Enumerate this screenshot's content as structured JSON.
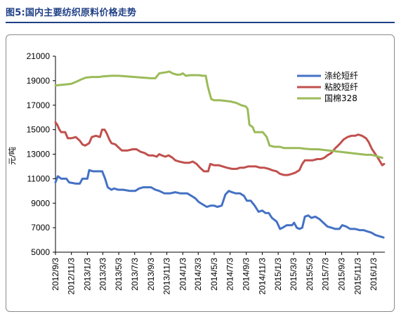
{
  "figure": {
    "title": "图5:国内主要纺织原料价格走势"
  },
  "colors": {
    "accent": "#1f3f86",
    "polyester": "#4472c4",
    "viscose": "#c0504d",
    "cotton": "#9bbb59"
  },
  "chart_data": {
    "type": "line",
    "ylabel": "元/吨",
    "ylim": [
      5000,
      21000
    ],
    "yticks": [
      5000,
      7000,
      9000,
      11000,
      13000,
      15000,
      17000,
      19000,
      21000
    ],
    "xlim": [
      "2012-09-03",
      "2016-02-15"
    ],
    "xticks": [
      "2012/9/3",
      "2012/11/3",
      "2013/1/3",
      "2013/3/3",
      "2013/5/3",
      "2013/7/3",
      "2013/9/3",
      "2013/11/3",
      "2014/1/3",
      "2014/3/3",
      "2014/5/3",
      "2014/7/3",
      "2014/9/3",
      "2014/11/3",
      "2015/1/3",
      "2015/3/3",
      "2015/5/3",
      "2015/7/3",
      "2015/9/3",
      "2015/11/3",
      "2016/1/3"
    ],
    "legend_position": "top-right",
    "grid": false,
    "series": [
      {
        "name": "涤纶短纤",
        "color": "#4472c4",
        "points": [
          [
            "2012-09-03",
            10700
          ],
          [
            "2012-09-12",
            11200
          ],
          [
            "2012-09-25",
            11000
          ],
          [
            "2012-10-15",
            11000
          ],
          [
            "2012-10-25",
            10700
          ],
          [
            "2012-11-20",
            10600
          ],
          [
            "2012-12-05",
            10600
          ],
          [
            "2012-12-15",
            11000
          ],
          [
            "2013-01-03",
            11000
          ],
          [
            "2013-01-10",
            11700
          ],
          [
            "2013-01-25",
            11600
          ],
          [
            "2013-02-20",
            11600
          ],
          [
            "2013-03-01",
            11600
          ],
          [
            "2013-03-12",
            11000
          ],
          [
            "2013-03-22",
            10300
          ],
          [
            "2013-04-05",
            10100
          ],
          [
            "2013-04-15",
            10200
          ],
          [
            "2013-05-01",
            10100
          ],
          [
            "2013-05-20",
            10100
          ],
          [
            "2013-06-15",
            10000
          ],
          [
            "2013-07-05",
            10000
          ],
          [
            "2013-07-20",
            10200
          ],
          [
            "2013-08-05",
            10300
          ],
          [
            "2013-09-03",
            10300
          ],
          [
            "2013-09-20",
            10100
          ],
          [
            "2013-10-05",
            10000
          ],
          [
            "2013-10-25",
            9800
          ],
          [
            "2013-11-15",
            9800
          ],
          [
            "2013-12-05",
            9900
          ],
          [
            "2013-12-25",
            9800
          ],
          [
            "2014-01-20",
            9800
          ],
          [
            "2014-02-05",
            9600
          ],
          [
            "2014-02-20",
            9400
          ],
          [
            "2014-03-05",
            9100
          ],
          [
            "2014-03-20",
            8900
          ],
          [
            "2014-04-05",
            8700
          ],
          [
            "2014-04-20",
            8800
          ],
          [
            "2014-05-03",
            8800
          ],
          [
            "2014-05-15",
            8700
          ],
          [
            "2014-06-01",
            8800
          ],
          [
            "2014-06-15",
            9700
          ],
          [
            "2014-06-28",
            10000
          ],
          [
            "2014-07-10",
            9900
          ],
          [
            "2014-07-25",
            9800
          ],
          [
            "2014-08-10",
            9800
          ],
          [
            "2014-08-25",
            9600
          ],
          [
            "2014-09-05",
            9200
          ],
          [
            "2014-09-20",
            9200
          ],
          [
            "2014-10-05",
            8800
          ],
          [
            "2014-10-20",
            8300
          ],
          [
            "2014-11-03",
            8400
          ],
          [
            "2014-11-15",
            8200
          ],
          [
            "2014-11-28",
            8200
          ],
          [
            "2014-12-10",
            7800
          ],
          [
            "2014-12-28",
            7500
          ],
          [
            "2015-01-10",
            6900
          ],
          [
            "2015-01-20",
            7000
          ],
          [
            "2015-02-05",
            7200
          ],
          [
            "2015-02-25",
            7200
          ],
          [
            "2015-03-05",
            7400
          ],
          [
            "2015-03-15",
            7000
          ],
          [
            "2015-03-25",
            6900
          ],
          [
            "2015-04-05",
            7000
          ],
          [
            "2015-04-15",
            7900
          ],
          [
            "2015-04-28",
            8000
          ],
          [
            "2015-05-10",
            7800
          ],
          [
            "2015-05-25",
            7900
          ],
          [
            "2015-06-10",
            7700
          ],
          [
            "2015-06-25",
            7400
          ],
          [
            "2015-07-10",
            7100
          ],
          [
            "2015-07-25",
            7000
          ],
          [
            "2015-08-10",
            6900
          ],
          [
            "2015-08-25",
            6900
          ],
          [
            "2015-09-05",
            7200
          ],
          [
            "2015-09-20",
            7100
          ],
          [
            "2015-10-05",
            6900
          ],
          [
            "2015-10-25",
            6900
          ],
          [
            "2015-11-10",
            6800
          ],
          [
            "2015-11-25",
            6800
          ],
          [
            "2015-12-10",
            6700
          ],
          [
            "2015-12-25",
            6600
          ],
          [
            "2016-01-10",
            6400
          ],
          [
            "2016-01-25",
            6300
          ],
          [
            "2016-02-10",
            6200
          ]
        ]
      },
      {
        "name": "粘胶短纤",
        "color": "#c0504d",
        "points": [
          [
            "2012-09-03",
            15600
          ],
          [
            "2012-09-10",
            15400
          ],
          [
            "2012-09-18",
            15000
          ],
          [
            "2012-09-25",
            14800
          ],
          [
            "2012-10-10",
            14800
          ],
          [
            "2012-10-20",
            14300
          ],
          [
            "2012-11-03",
            14300
          ],
          [
            "2012-11-20",
            14400
          ],
          [
            "2012-12-05",
            14100
          ],
          [
            "2012-12-15",
            13800
          ],
          [
            "2012-12-25",
            13700
          ],
          [
            "2013-01-10",
            13900
          ],
          [
            "2013-01-20",
            14400
          ],
          [
            "2013-02-05",
            14500
          ],
          [
            "2013-02-20",
            14400
          ],
          [
            "2013-02-28",
            15000
          ],
          [
            "2013-03-10",
            15000
          ],
          [
            "2013-03-18",
            14700
          ],
          [
            "2013-03-28",
            14200
          ],
          [
            "2013-04-05",
            13900
          ],
          [
            "2013-04-20",
            13800
          ],
          [
            "2013-05-05",
            13500
          ],
          [
            "2013-05-15",
            13300
          ],
          [
            "2013-06-05",
            13300
          ],
          [
            "2013-06-25",
            13400
          ],
          [
            "2013-07-10",
            13400
          ],
          [
            "2013-07-25",
            13200
          ],
          [
            "2013-08-10",
            13100
          ],
          [
            "2013-08-25",
            12900
          ],
          [
            "2013-09-10",
            12900
          ],
          [
            "2013-09-25",
            12800
          ],
          [
            "2013-10-05",
            13000
          ],
          [
            "2013-10-15",
            12900
          ],
          [
            "2013-10-28",
            12800
          ],
          [
            "2013-11-10",
            12900
          ],
          [
            "2013-11-25",
            12700
          ],
          [
            "2013-12-05",
            12500
          ],
          [
            "2013-12-20",
            12400
          ],
          [
            "2014-01-10",
            12300
          ],
          [
            "2014-01-28",
            12300
          ],
          [
            "2014-02-10",
            12400
          ],
          [
            "2014-02-25",
            12200
          ],
          [
            "2014-03-10",
            11900
          ],
          [
            "2014-03-25",
            11600
          ],
          [
            "2014-04-10",
            11600
          ],
          [
            "2014-04-18",
            12200
          ],
          [
            "2014-05-03",
            12100
          ],
          [
            "2014-05-20",
            12100
          ],
          [
            "2014-06-05",
            12000
          ],
          [
            "2014-06-20",
            11900
          ],
          [
            "2014-07-10",
            11800
          ],
          [
            "2014-07-28",
            11800
          ],
          [
            "2014-08-10",
            11900
          ],
          [
            "2014-08-25",
            11900
          ],
          [
            "2014-09-10",
            12000
          ],
          [
            "2014-09-25",
            12000
          ],
          [
            "2014-10-10",
            12000
          ],
          [
            "2014-10-25",
            11900
          ],
          [
            "2014-11-10",
            11900
          ],
          [
            "2014-11-28",
            11800
          ],
          [
            "2014-12-10",
            11700
          ],
          [
            "2014-12-28",
            11600
          ],
          [
            "2015-01-10",
            11400
          ],
          [
            "2015-01-25",
            11300
          ],
          [
            "2015-02-10",
            11300
          ],
          [
            "2015-02-25",
            11400
          ],
          [
            "2015-03-10",
            11500
          ],
          [
            "2015-03-25",
            11700
          ],
          [
            "2015-04-05",
            12200
          ],
          [
            "2015-04-15",
            12500
          ],
          [
            "2015-04-28",
            12500
          ],
          [
            "2015-05-15",
            12500
          ],
          [
            "2015-06-01",
            12600
          ],
          [
            "2015-06-15",
            12600
          ],
          [
            "2015-06-28",
            12700
          ],
          [
            "2015-07-10",
            12900
          ],
          [
            "2015-07-25",
            13100
          ],
          [
            "2015-08-10",
            13500
          ],
          [
            "2015-08-25",
            13800
          ],
          [
            "2015-09-10",
            14200
          ],
          [
            "2015-09-25",
            14400
          ],
          [
            "2015-10-10",
            14500
          ],
          [
            "2015-10-25",
            14500
          ],
          [
            "2015-11-05",
            14600
          ],
          [
            "2015-11-20",
            14500
          ],
          [
            "2015-12-05",
            14300
          ],
          [
            "2015-12-15",
            14000
          ],
          [
            "2015-12-28",
            13400
          ],
          [
            "2016-01-10",
            13000
          ],
          [
            "2016-01-25",
            12500
          ],
          [
            "2016-02-05",
            12100
          ],
          [
            "2016-02-12",
            12200
          ]
        ]
      },
      {
        "name": "国棉328",
        "color": "#9bbb59",
        "points": [
          [
            "2012-09-03",
            18600
          ],
          [
            "2012-09-20",
            18650
          ],
          [
            "2012-10-15",
            18700
          ],
          [
            "2012-11-03",
            18750
          ],
          [
            "2012-11-20",
            18900
          ],
          [
            "2012-12-10",
            19100
          ],
          [
            "2012-12-28",
            19250
          ],
          [
            "2013-01-20",
            19300
          ],
          [
            "2013-02-15",
            19300
          ],
          [
            "2013-03-03",
            19350
          ],
          [
            "2013-04-05",
            19400
          ],
          [
            "2013-05-03",
            19400
          ],
          [
            "2013-06-03",
            19350
          ],
          [
            "2013-07-03",
            19300
          ],
          [
            "2013-08-03",
            19250
          ],
          [
            "2013-09-03",
            19200
          ],
          [
            "2013-09-20",
            19200
          ],
          [
            "2013-10-05",
            19600
          ],
          [
            "2013-10-20",
            19650
          ],
          [
            "2013-11-03",
            19700
          ],
          [
            "2013-11-12",
            19750
          ],
          [
            "2013-11-25",
            19600
          ],
          [
            "2013-12-10",
            19500
          ],
          [
            "2013-12-25",
            19500
          ],
          [
            "2014-01-03",
            19600
          ],
          [
            "2014-01-15",
            19400
          ],
          [
            "2014-02-01",
            19450
          ],
          [
            "2014-02-20",
            19450
          ],
          [
            "2014-03-05",
            19450
          ],
          [
            "2014-03-20",
            19400
          ],
          [
            "2014-04-01",
            19400
          ],
          [
            "2014-04-08",
            18600
          ],
          [
            "2014-04-14",
            18100
          ],
          [
            "2014-04-22",
            17500
          ],
          [
            "2014-05-03",
            17400
          ],
          [
            "2014-05-25",
            17400
          ],
          [
            "2014-06-15",
            17350
          ],
          [
            "2014-07-05",
            17300
          ],
          [
            "2014-07-25",
            17200
          ],
          [
            "2014-08-15",
            17000
          ],
          [
            "2014-09-01",
            16900
          ],
          [
            "2014-09-08",
            16700
          ],
          [
            "2014-09-15",
            15400
          ],
          [
            "2014-09-28",
            15200
          ],
          [
            "2014-10-05",
            14800
          ],
          [
            "2014-10-25",
            14800
          ],
          [
            "2014-11-05",
            14800
          ],
          [
            "2014-11-20",
            14400
          ],
          [
            "2014-12-01",
            13700
          ],
          [
            "2014-12-20",
            13600
          ],
          [
            "2015-01-10",
            13600
          ],
          [
            "2015-01-25",
            13500
          ],
          [
            "2015-02-15",
            13500
          ],
          [
            "2015-03-05",
            13500
          ],
          [
            "2015-03-25",
            13500
          ],
          [
            "2015-04-15",
            13450
          ],
          [
            "2015-05-10",
            13400
          ],
          [
            "2015-06-05",
            13400
          ],
          [
            "2015-06-25",
            13350
          ],
          [
            "2015-07-15",
            13300
          ],
          [
            "2015-08-05",
            13250
          ],
          [
            "2015-08-25",
            13200
          ],
          [
            "2015-09-15",
            13150
          ],
          [
            "2015-10-05",
            13100
          ],
          [
            "2015-10-25",
            13050
          ],
          [
            "2015-11-15",
            13000
          ],
          [
            "2015-12-05",
            12950
          ],
          [
            "2015-12-25",
            12950
          ],
          [
            "2016-01-05",
            12900
          ],
          [
            "2016-01-20",
            12800
          ],
          [
            "2016-02-05",
            12700
          ]
        ]
      }
    ]
  }
}
